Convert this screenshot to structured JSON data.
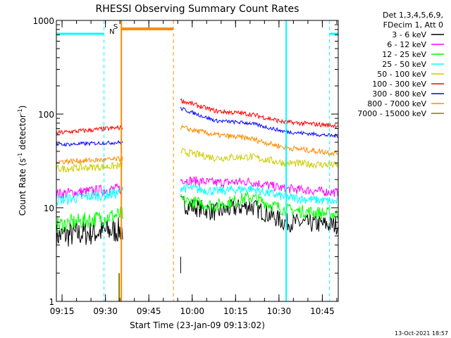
{
  "chart_data": {
    "type": "line",
    "title": "RHESSI Observing Summary Count Rates",
    "xlabel": "Start Time (23-Jan-09 09:13:02)",
    "ylabel": "Count Rate (s^-1 detector^-1)",
    "ylabel_parts": [
      "Count Rate (s",
      "-1",
      " detector",
      "-1",
      ")"
    ],
    "x_axis": {
      "unit": "time of day (23-Jan-09)",
      "range": [
        "09:13:02",
        "10:50:30"
      ],
      "tick_labels": [
        "09:15",
        "09:30",
        "09:45",
        "10:00",
        "10:15",
        "10:30",
        "10:45"
      ]
    },
    "y_axis": {
      "scale": "log",
      "range": [
        1,
        1000
      ],
      "tick_labels": [
        "1",
        "10",
        "100",
        "1000"
      ]
    },
    "grid": false,
    "legend_position": "top-right, outside plot",
    "header_lines": [
      "Det 1,3,4,5,6,9,",
      "FDecim 1, Att 0"
    ],
    "timestamp": "13-Oct-2021 18:57",
    "flag_labels": {
      "N": "N",
      "S": "S"
    },
    "colors": {
      "night_marker": "#00ffff",
      "saa_marker": "#ff8c00",
      "attenuator_bar": "#ff8c00"
    },
    "series": [
      {
        "name": "3 - 6 keV",
        "color": "#000000",
        "segments": [
          {
            "times": [
              "09:13:02",
              "09:36:00"
            ],
            "start": 5.0,
            "end": 5.8,
            "noise": 0.14
          },
          {
            "times": [
              "09:56:00",
              "10:08:00",
              "10:20:00",
              "10:32:00",
              "10:50:30"
            ],
            "values": [
              11.0,
              9.0,
              10.5,
              7.0,
              6.5
            ],
            "noise": 0.1
          }
        ]
      },
      {
        "name": "6 - 12 keV",
        "color": "#ff00ff",
        "segments": [
          {
            "times": [
              "09:13:02",
              "09:36:00"
            ],
            "start": 14.0,
            "end": 16.0,
            "noise": 0.06
          },
          {
            "times": [
              "09:56:00",
              "10:08:00",
              "10:20:00",
              "10:32:00",
              "10:50:30"
            ],
            "values": [
              20.0,
              18.5,
              19.0,
              16.0,
              14.5
            ],
            "noise": 0.05
          }
        ]
      },
      {
        "name": "12 - 25 keV",
        "color": "#00ff00",
        "segments": [
          {
            "times": [
              "09:13:02",
              "09:36:00"
            ],
            "start": 6.5,
            "end": 8.5,
            "noise": 0.09
          },
          {
            "times": [
              "09:56:00",
              "10:08:00",
              "10:20:00",
              "10:32:00",
              "10:50:30"
            ],
            "values": [
              12.0,
              10.5,
              13.0,
              9.5,
              8.5
            ],
            "noise": 0.07
          }
        ]
      },
      {
        "name": "25 - 50 keV",
        "color": "#00ffff",
        "segments": [
          {
            "times": [
              "09:13:02",
              "09:36:00"
            ],
            "start": 12.0,
            "end": 14.5,
            "noise": 0.06
          },
          {
            "times": [
              "09:56:00",
              "10:08:00",
              "10:20:00",
              "10:32:00",
              "10:50:30"
            ],
            "values": [
              16.5,
              15.0,
              16.0,
              13.0,
              11.5
            ],
            "noise": 0.05
          }
        ]
      },
      {
        "name": "50 - 100 keV",
        "color": "#cccc00",
        "segments": [
          {
            "times": [
              "09:13:02",
              "09:36:00"
            ],
            "start": 26.0,
            "end": 28.0,
            "noise": 0.04
          },
          {
            "times": [
              "09:56:00",
              "10:08:00",
              "10:20:00",
              "10:32:00",
              "10:50:30"
            ],
            "values": [
              40.0,
              34.0,
              35.0,
              30.0,
              28.5
            ],
            "noise": 0.04
          }
        ]
      },
      {
        "name": "100 - 300 keV",
        "color": "#ff0000",
        "segments": [
          {
            "times": [
              "09:13:02",
              "09:36:00"
            ],
            "start": 63.0,
            "end": 72.0,
            "noise": 0.025
          },
          {
            "times": [
              "09:56:00",
              "10:08:00",
              "10:20:00",
              "10:32:00",
              "10:50:30"
            ],
            "values": [
              140.0,
              108.0,
              100.0,
              82.0,
              75.0
            ],
            "noise": 0.025
          }
        ]
      },
      {
        "name": "300 - 800 keV",
        "color": "#0000ff",
        "segments": [
          {
            "times": [
              "09:13:02",
              "09:36:00"
            ],
            "start": 47.0,
            "end": 50.0,
            "noise": 0.02
          },
          {
            "times": [
              "09:56:00",
              "10:08:00",
              "10:20:00",
              "10:32:00",
              "10:50:30"
            ],
            "values": [
              115.0,
              85.0,
              80.0,
              65.0,
              58.0
            ],
            "noise": 0.02
          }
        ]
      },
      {
        "name": "800 - 7000 keV",
        "color": "#ff8c00",
        "segments": [
          {
            "times": [
              "09:13:02",
              "09:36:00"
            ],
            "start": 31.0,
            "end": 33.0,
            "noise": 0.03
          },
          {
            "times": [
              "09:56:00",
              "10:08:00",
              "10:20:00",
              "10:32:00",
              "10:50:30"
            ],
            "values": [
              72.0,
              60.0,
              55.0,
              44.0,
              38.0
            ],
            "noise": 0.03
          }
        ]
      },
      {
        "name": "7000 - 15000 keV",
        "color": "#808000",
        "segments": []
      }
    ]
  }
}
